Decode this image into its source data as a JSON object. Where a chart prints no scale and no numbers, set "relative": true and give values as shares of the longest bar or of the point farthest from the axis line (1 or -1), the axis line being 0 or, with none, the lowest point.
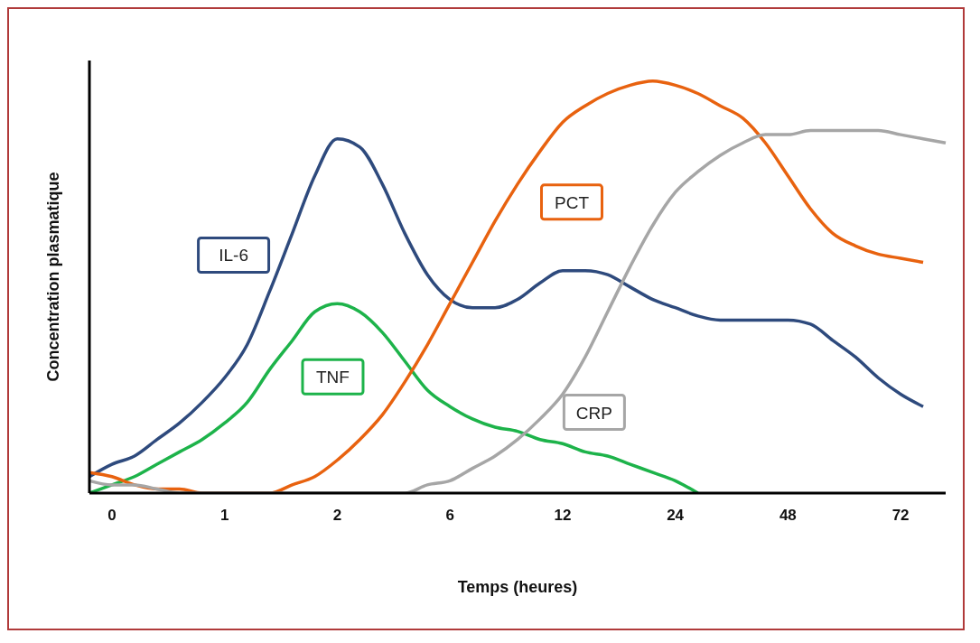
{
  "chart_data": {
    "type": "line",
    "relative": true,
    "xlabel": "Temps (heures)",
    "ylabel": "Concentration plasmatique",
    "categories": [
      null,
      "0",
      null,
      null,
      null,
      null,
      "1",
      null,
      null,
      null,
      null,
      "2",
      null,
      null,
      null,
      null,
      "6",
      null,
      null,
      null,
      null,
      "12",
      null,
      null,
      null,
      null,
      "24",
      null,
      null,
      null,
      null,
      "48",
      null,
      null,
      null,
      null,
      "72",
      null,
      null
    ],
    "series": [
      {
        "name": "IL-6",
        "color": "#2e4a7d",
        "values": [
          0.04,
          0.07,
          0.09,
          0.13,
          0.17,
          0.22,
          0.28,
          0.36,
          0.49,
          0.63,
          0.77,
          0.86,
          0.84,
          0.75,
          0.63,
          0.53,
          0.47,
          0.45,
          0.45,
          0.47,
          0.51,
          0.54,
          0.54,
          0.53,
          0.5,
          0.47,
          0.45,
          0.43,
          0.42,
          0.42,
          0.42,
          0.42,
          0.41,
          0.37,
          0.33,
          0.28,
          0.24,
          0.21,
          null
        ]
      },
      {
        "name": "TNF",
        "color": "#1db34a",
        "values": [
          0.0,
          0.02,
          0.04,
          0.07,
          0.1,
          0.13,
          0.17,
          0.22,
          0.3,
          0.37,
          0.44,
          0.46,
          0.44,
          0.39,
          0.32,
          0.25,
          0.21,
          0.18,
          0.16,
          0.15,
          0.13,
          0.12,
          0.1,
          0.09,
          0.07,
          0.05,
          0.03,
          0.0,
          null,
          null,
          null,
          null,
          null,
          null,
          null,
          null,
          null,
          null,
          null
        ]
      },
      {
        "name": "PCT",
        "color": "#e8620f",
        "values": [
          0.05,
          0.04,
          0.02,
          0.01,
          0.01,
          0.0,
          0.0,
          0.0,
          0.0,
          0.02,
          0.04,
          0.08,
          0.13,
          0.19,
          0.27,
          0.36,
          0.46,
          0.56,
          0.66,
          0.75,
          0.83,
          0.9,
          0.94,
          0.97,
          0.99,
          1.0,
          0.99,
          0.97,
          0.94,
          0.91,
          0.85,
          0.77,
          0.69,
          0.63,
          0.6,
          0.58,
          0.57,
          0.56,
          null
        ]
      },
      {
        "name": "CRP",
        "color": "#a6a6a6",
        "values": [
          0.03,
          0.02,
          0.02,
          0.01,
          0.0,
          0.0,
          0.0,
          0.0,
          0.0,
          0.0,
          0.0,
          0.0,
          0.0,
          0.0,
          0.0,
          0.02,
          0.03,
          0.06,
          0.09,
          0.13,
          0.18,
          0.24,
          0.33,
          0.44,
          0.55,
          0.65,
          0.73,
          0.78,
          0.82,
          0.85,
          0.87,
          0.87,
          0.88,
          0.88,
          0.88,
          0.88,
          0.87,
          0.86,
          0.85
        ]
      }
    ],
    "legend": false,
    "grid": false,
    "marker": "none",
    "line_style": "solid"
  }
}
